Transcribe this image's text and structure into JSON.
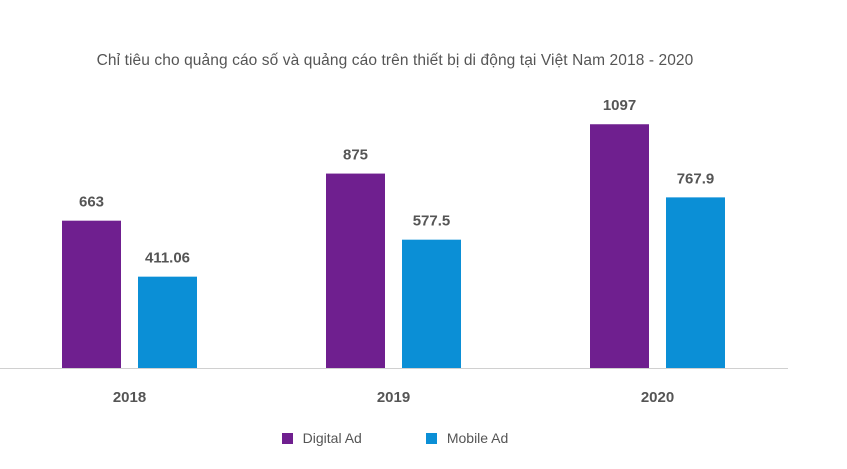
{
  "chart_data": {
    "type": "bar",
    "title": "Chỉ tiêu cho quảng cáo số và quảng cáo trên thiết bị di động tại Việt Nam 2018 - 2020",
    "categories": [
      "2018",
      "2019",
      "2020"
    ],
    "series": [
      {
        "name": "Digital Ad",
        "values": [
          663,
          875,
          1097
        ],
        "labels": [
          "663",
          "875",
          "1097"
        ],
        "color": "#6f1f8f"
      },
      {
        "name": "Mobile Ad",
        "values": [
          411.06,
          577.5,
          767.9
        ],
        "labels": [
          "411.06",
          "577.5",
          "767.9"
        ],
        "color": "#0b8fd6"
      }
    ],
    "ylim": [
      0,
      1100
    ],
    "grid": false,
    "legend_position": "bottom"
  }
}
